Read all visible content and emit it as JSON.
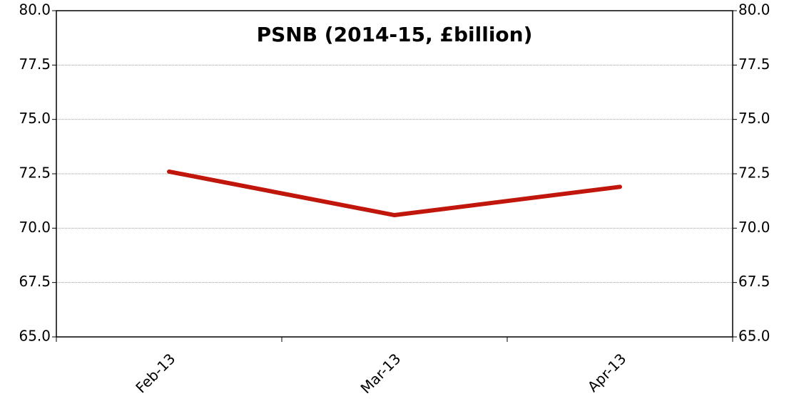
{
  "chart_data": {
    "type": "line",
    "title": "PSNB (2014-15, £billion)",
    "categories": [
      "Feb-13",
      "Mar-13",
      "Apr-13"
    ],
    "series": [
      {
        "name": "PSNB",
        "color": "#c0160c",
        "values": [
          72.6,
          70.6,
          71.9
        ]
      }
    ],
    "ylim": [
      65,
      80
    ],
    "yticks": [
      {
        "value": 65,
        "label": "65.0"
      },
      {
        "value": 67.5,
        "label": "67.5"
      },
      {
        "value": 70,
        "label": "70.0"
      },
      {
        "value": 72.5,
        "label": "72.5"
      },
      {
        "value": 75,
        "label": "75.0"
      },
      {
        "value": 77.5,
        "label": "77.5"
      },
      {
        "value": 80,
        "label": "80.0"
      }
    ],
    "y2lim": [
      65,
      80
    ],
    "y2ticks": [
      {
        "value": 65,
        "label": "65.0"
      },
      {
        "value": 67.5,
        "label": "67.5"
      },
      {
        "value": 70,
        "label": "70.0"
      },
      {
        "value": 72.5,
        "label": "72.5"
      },
      {
        "value": 75,
        "label": "75.0"
      },
      {
        "value": 77.5,
        "label": "77.5"
      },
      {
        "value": 80,
        "label": "80.0"
      }
    ],
    "grid": true
  }
}
